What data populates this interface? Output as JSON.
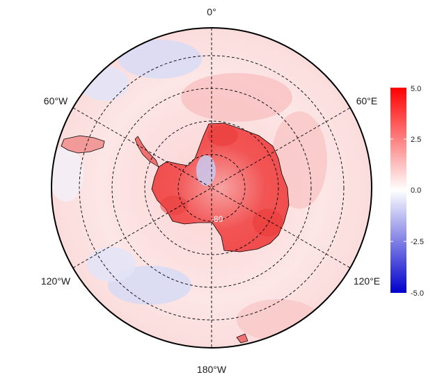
{
  "map": {
    "projection": "south polar stereographic",
    "meridian_labels": {
      "top": "0°",
      "upper_left": "60°W",
      "upper_right": "60°E",
      "lower_left": "120°W",
      "lower_right": "120°E",
      "bottom": "180°W"
    },
    "inner_latitude_label": "-80",
    "graticule_style": "dashed",
    "colors": {
      "antarctica_warm": "#f25a5a",
      "ocean_background": "#fde4e4",
      "cool_patch": "#d2d5f3",
      "coastline": "#000000",
      "frame": "#000000"
    }
  },
  "colorbar": {
    "ticks": [
      "5.0",
      "2.5",
      "0.0",
      "-2.5",
      "-5.0"
    ],
    "min": -5.0,
    "max": 5.0,
    "colors": {
      "high": "#ff0000",
      "mid": "#ffffff",
      "low": "#0000cc"
    }
  }
}
